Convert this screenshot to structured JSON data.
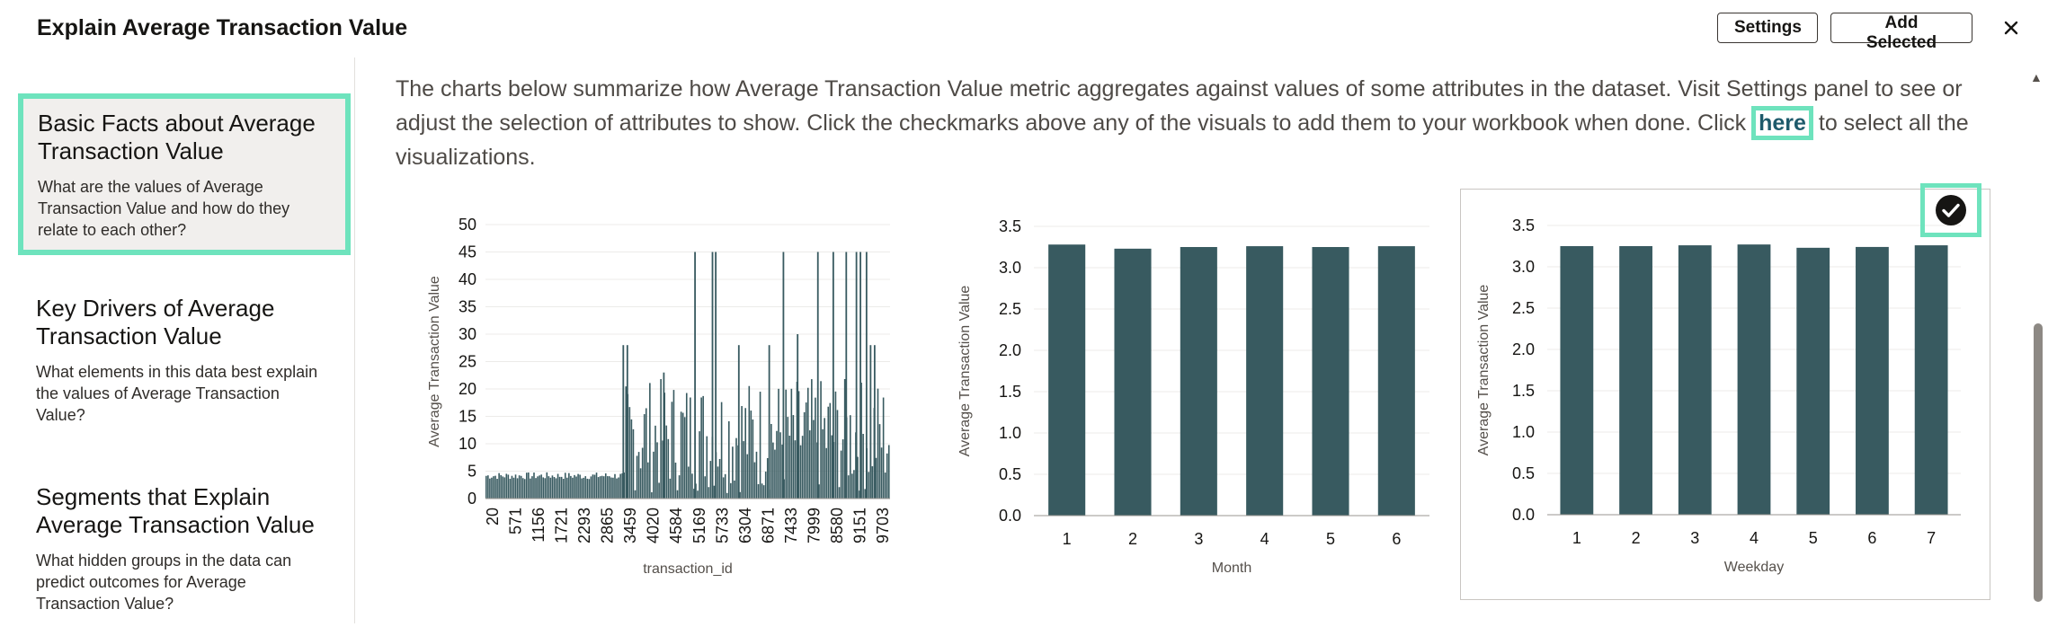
{
  "header": {
    "title": "Explain Average Transaction Value",
    "settings_label": "Settings",
    "add_selected_label": "Add Selected",
    "close_icon": "close-icon"
  },
  "sidebar": {
    "items": [
      {
        "title": "Basic Facts about Average Transaction Value",
        "desc": "What are the values of Average Transaction Value and how do they relate to each other?",
        "active": true
      },
      {
        "title": "Key Drivers of Average Transaction Value",
        "desc": "What elements in this data best explain the values of Average Transaction Value?",
        "active": false
      },
      {
        "title": "Segments that Explain Average Transaction Value",
        "desc": "What hidden groups in the data can predict outcomes for Average Transaction Value?",
        "active": false
      }
    ]
  },
  "intro": {
    "before": "The charts below summarize how Average Transaction Value metric aggregates against values of some attributes in the dataset. Visit Settings panel to see or adjust the selection of attributes to show. Click the checkmarks above any of the visuals to add them to your workbook when done. Click ",
    "link": "here",
    "after": " to select all the visualizations."
  },
  "colors": {
    "bar": "#385a60",
    "accent": "#6ee3bd",
    "link": "#1e5a6b"
  },
  "chart_data": [
    {
      "type": "bar",
      "xlabel": "transaction_id",
      "ylabel": "Average Transaction Value",
      "ylim": [
        0,
        50
      ],
      "yticks": [
        0,
        5,
        10,
        15,
        20,
        25,
        30,
        35,
        40,
        45,
        50
      ],
      "xticks": [
        "20",
        "571",
        "1156",
        "1721",
        "2293",
        "2865",
        "3459",
        "4020",
        "4584",
        "5169",
        "5733",
        "6304",
        "6871",
        "7433",
        "7999",
        "8580",
        "9151",
        "9703"
      ],
      "x_domain": [
        20,
        10000
      ],
      "baseline_range": [
        3.5,
        4.8
      ],
      "baseline_until": 3459,
      "later_range": [
        1,
        22
      ],
      "spikes": [
        {
          "x": 3400,
          "y": 28
        },
        {
          "x": 3500,
          "y": 28
        },
        {
          "x": 4400,
          "y": 23
        },
        {
          "x": 5169,
          "y": 45
        },
        {
          "x": 5600,
          "y": 45
        },
        {
          "x": 5680,
          "y": 45
        },
        {
          "x": 6250,
          "y": 28
        },
        {
          "x": 7000,
          "y": 28
        },
        {
          "x": 7350,
          "y": 45
        },
        {
          "x": 7700,
          "y": 30
        },
        {
          "x": 8200,
          "y": 45
        },
        {
          "x": 8580,
          "y": 45
        },
        {
          "x": 8900,
          "y": 45
        },
        {
          "x": 9151,
          "y": 45
        },
        {
          "x": 9250,
          "y": 45
        },
        {
          "x": 9400,
          "y": 45
        },
        {
          "x": 9500,
          "y": 28
        },
        {
          "x": 9600,
          "y": 28
        }
      ]
    },
    {
      "type": "bar",
      "xlabel": "Month",
      "ylabel": "Average Transaction Value",
      "ylim": [
        0,
        3.5
      ],
      "yticks": [
        "0.0",
        "0.5",
        "1.0",
        "1.5",
        "2.0",
        "2.5",
        "3.0",
        "3.5"
      ],
      "categories": [
        "1",
        "2",
        "3",
        "4",
        "5",
        "6"
      ],
      "values": [
        3.28,
        3.23,
        3.25,
        3.26,
        3.25,
        3.26
      ]
    },
    {
      "type": "bar",
      "xlabel": "Weekday",
      "ylabel": "Average Transaction Value",
      "ylim": [
        0,
        3.5
      ],
      "yticks": [
        "0.0",
        "0.5",
        "1.0",
        "1.5",
        "2.0",
        "2.5",
        "3.0",
        "3.5"
      ],
      "categories": [
        "1",
        "2",
        "3",
        "4",
        "5",
        "6",
        "7"
      ],
      "values": [
        3.25,
        3.25,
        3.26,
        3.27,
        3.23,
        3.24,
        3.26
      ],
      "selected": true
    }
  ]
}
